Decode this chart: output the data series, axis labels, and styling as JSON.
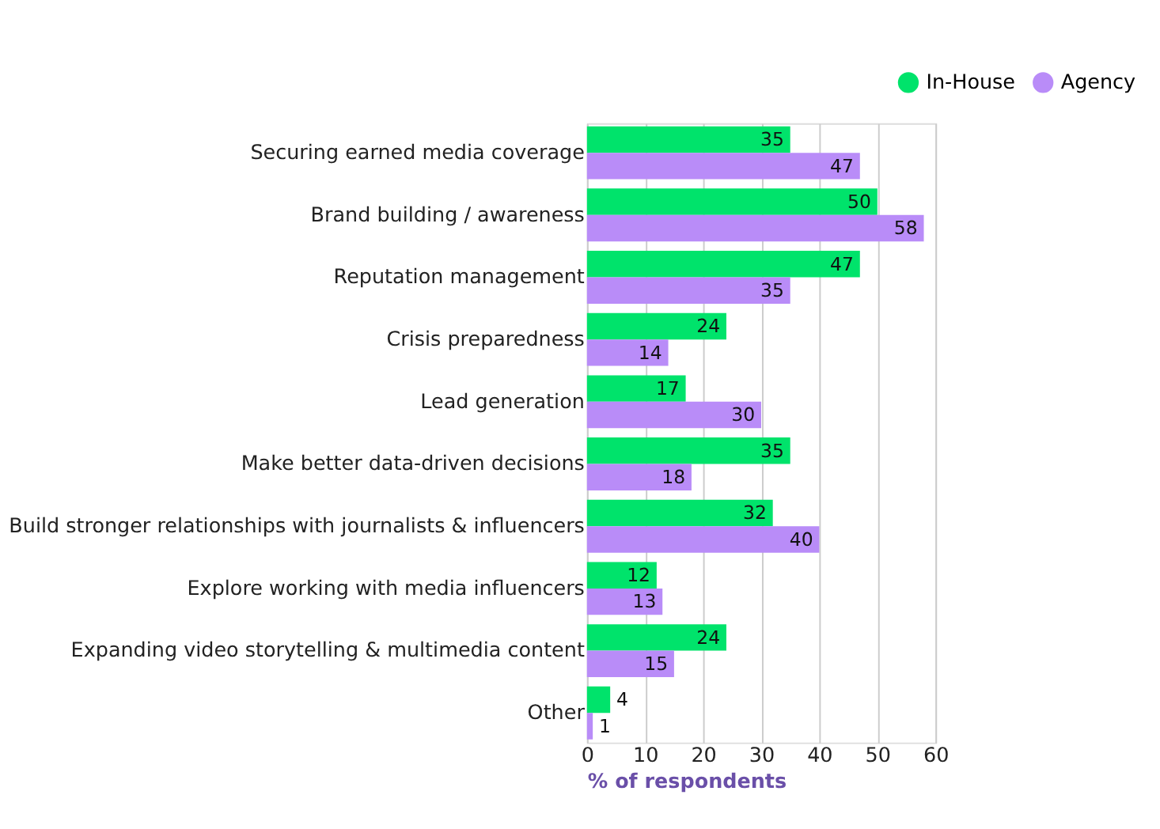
{
  "chart_data": {
    "type": "bar",
    "orientation": "horizontal",
    "xlabel": "% of respondents",
    "categories": [
      "Securing earned media coverage",
      "Brand building / awareness",
      "Reputation management",
      "Crisis preparedness",
      "Lead generation",
      "Make better data-driven decisions",
      "Build stronger relationships with journalists & influencers",
      "Explore working with media influencers",
      "Expanding video storytelling & multimedia content",
      "Other"
    ],
    "series": [
      {
        "name": "In-House",
        "color": "#00e36b",
        "values": [
          35,
          50,
          47,
          24,
          17,
          35,
          32,
          12,
          24,
          4
        ]
      },
      {
        "name": "Agency",
        "color": "#b98cf8",
        "values": [
          47,
          58,
          35,
          14,
          30,
          18,
          40,
          13,
          15,
          1
        ]
      }
    ],
    "xlim": [
      0,
      60
    ],
    "xticks": [
      0,
      10,
      20,
      30,
      40,
      50,
      60
    ],
    "grid": "x",
    "legend": "top right",
    "data_labels": true
  }
}
